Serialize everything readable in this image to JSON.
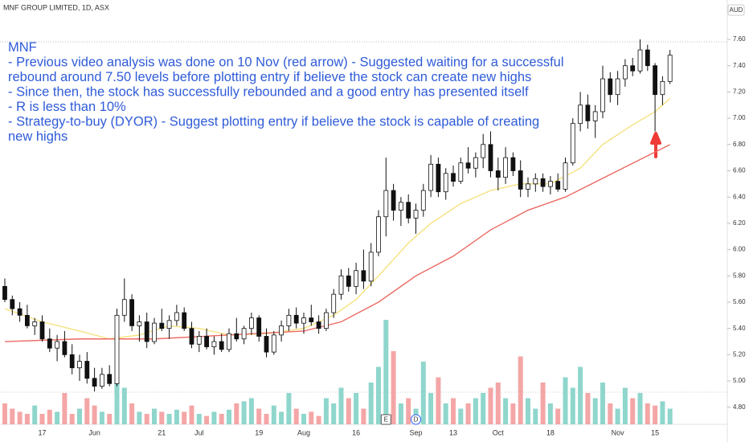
{
  "chart_data": {
    "type": "candlestick",
    "title": "MNF GROUP LIMITED, 1D, ASX",
    "currency": "AUD",
    "annotation": [
      "MNF",
      "- Previous video analysis was done on 10 Nov (red arrow) - Suggested waiting for a successful",
      "rebound around 7.50 levels before plotting entry if believe the stock can create new highs",
      "- Since then, the stock has successfully rebounded and a good entry has presented itself",
      "- R is less than 10%",
      "- Strategy-to-buy (DYOR) - Suggest plotting entry if believe the stock is capable of creating",
      "new highs"
    ],
    "categories": [
      null,
      null,
      null,
      null,
      null,
      "17",
      null,
      null,
      null,
      null,
      null,
      null,
      "Jun",
      null,
      null,
      null,
      null,
      null,
      null,
      null,
      null,
      "21",
      null,
      null,
      null,
      null,
      "Jul",
      null,
      null,
      null,
      null,
      null,
      null,
      null,
      "19",
      null,
      null,
      null,
      null,
      null,
      "Aug",
      null,
      null,
      null,
      null,
      null,
      null,
      "16",
      null,
      null,
      null,
      null,
      null,
      null,
      null,
      "Sep",
      null,
      null,
      null,
      null,
      "13",
      null,
      null,
      null,
      null,
      null,
      "Oct",
      null,
      null,
      null,
      null,
      null,
      null,
      "18",
      null,
      null,
      null,
      null,
      null,
      null,
      null,
      null,
      "Nov",
      null,
      null,
      null,
      null,
      "15",
      null,
      null
    ],
    "ohlc": [
      [
        5.72,
        5.78,
        5.6,
        5.62
      ],
      [
        5.62,
        5.65,
        5.5,
        5.55
      ],
      [
        5.55,
        5.6,
        5.45,
        5.5
      ],
      [
        5.5,
        5.58,
        5.4,
        5.42
      ],
      [
        5.42,
        5.48,
        5.35,
        5.45
      ],
      [
        5.45,
        5.5,
        5.3,
        5.32
      ],
      [
        5.32,
        5.4,
        5.22,
        5.25
      ],
      [
        5.25,
        5.35,
        5.15,
        5.3
      ],
      [
        5.3,
        5.38,
        5.18,
        5.2
      ],
      [
        5.2,
        5.28,
        5.05,
        5.1
      ],
      [
        5.1,
        5.2,
        5.0,
        5.15
      ],
      [
        5.15,
        5.22,
        4.98,
        5.02
      ],
      [
        5.02,
        5.1,
        4.92,
        4.96
      ],
      [
        4.96,
        5.1,
        4.94,
        5.05
      ],
      [
        5.05,
        5.12,
        4.96,
        4.98
      ],
      [
        4.98,
        5.55,
        4.96,
        5.5
      ],
      [
        5.5,
        5.78,
        5.45,
        5.62
      ],
      [
        5.62,
        5.66,
        5.38,
        5.42
      ],
      [
        5.42,
        5.5,
        5.3,
        5.45
      ],
      [
        5.45,
        5.52,
        5.25,
        5.3
      ],
      [
        5.3,
        5.48,
        5.28,
        5.44
      ],
      [
        5.44,
        5.55,
        5.38,
        5.4
      ],
      [
        5.4,
        5.5,
        5.32,
        5.46
      ],
      [
        5.46,
        5.58,
        5.42,
        5.52
      ],
      [
        5.52,
        5.56,
        5.38,
        5.4
      ],
      [
        5.4,
        5.45,
        5.25,
        5.28
      ],
      [
        5.28,
        5.38,
        5.22,
        5.34
      ],
      [
        5.34,
        5.4,
        5.24,
        5.26
      ],
      [
        5.26,
        5.34,
        5.2,
        5.3
      ],
      [
        5.3,
        5.36,
        5.22,
        5.24
      ],
      [
        5.24,
        5.4,
        5.22,
        5.36
      ],
      [
        5.36,
        5.48,
        5.3,
        5.32
      ],
      [
        5.32,
        5.42,
        5.28,
        5.4
      ],
      [
        5.4,
        5.52,
        5.35,
        5.48
      ],
      [
        5.48,
        5.5,
        5.3,
        5.34
      ],
      [
        5.34,
        5.4,
        5.18,
        5.22
      ],
      [
        5.22,
        5.38,
        5.2,
        5.35
      ],
      [
        5.35,
        5.46,
        5.3,
        5.42
      ],
      [
        5.42,
        5.55,
        5.38,
        5.5
      ],
      [
        5.5,
        5.56,
        5.4,
        5.44
      ],
      [
        5.44,
        5.52,
        5.36,
        5.48
      ],
      [
        5.48,
        5.58,
        5.42,
        5.45
      ],
      [
        5.45,
        5.5,
        5.36,
        5.4
      ],
      [
        5.4,
        5.55,
        5.38,
        5.52
      ],
      [
        5.52,
        5.7,
        5.48,
        5.66
      ],
      [
        5.66,
        5.85,
        5.62,
        5.8
      ],
      [
        5.8,
        5.86,
        5.68,
        5.72
      ],
      [
        5.72,
        5.9,
        5.66,
        5.84
      ],
      [
        5.84,
        6.0,
        5.7,
        5.76
      ],
      [
        5.76,
        6.05,
        5.72,
        5.98
      ],
      [
        5.98,
        6.3,
        5.95,
        6.25
      ],
      [
        6.25,
        6.7,
        6.1,
        6.45
      ],
      [
        6.45,
        6.5,
        6.22,
        6.3
      ],
      [
        6.3,
        6.4,
        6.18,
        6.36
      ],
      [
        6.36,
        6.42,
        6.2,
        6.24
      ],
      [
        6.24,
        6.35,
        6.12,
        6.3
      ],
      [
        6.3,
        6.5,
        6.25,
        6.45
      ],
      [
        6.45,
        6.72,
        6.4,
        6.65
      ],
      [
        6.65,
        6.7,
        6.4,
        6.44
      ],
      [
        6.44,
        6.62,
        6.38,
        6.58
      ],
      [
        6.58,
        6.64,
        6.48,
        6.52
      ],
      [
        6.52,
        6.7,
        6.5,
        6.66
      ],
      [
        6.66,
        6.78,
        6.58,
        6.62
      ],
      [
        6.62,
        6.74,
        6.55,
        6.7
      ],
      [
        6.7,
        6.88,
        6.62,
        6.8
      ],
      [
        6.8,
        6.9,
        6.55,
        6.6
      ],
      [
        6.6,
        6.7,
        6.45,
        6.55
      ],
      [
        6.55,
        6.78,
        6.5,
        6.7
      ],
      [
        6.7,
        6.74,
        6.56,
        6.6
      ],
      [
        6.6,
        6.68,
        6.4,
        6.46
      ],
      [
        6.46,
        6.55,
        6.4,
        6.5
      ],
      [
        6.5,
        6.58,
        6.44,
        6.54
      ],
      [
        6.54,
        6.58,
        6.44,
        6.48
      ],
      [
        6.48,
        6.56,
        6.42,
        6.52
      ],
      [
        6.52,
        6.58,
        6.44,
        6.46
      ],
      [
        6.46,
        6.7,
        6.44,
        6.66
      ],
      [
        6.66,
        7.0,
        6.64,
        6.96
      ],
      [
        6.96,
        7.2,
        6.9,
        7.1
      ],
      [
        7.1,
        7.18,
        6.92,
        6.98
      ],
      [
        6.98,
        7.1,
        6.85,
        7.05
      ],
      [
        7.05,
        7.4,
        7.0,
        7.3
      ],
      [
        7.3,
        7.35,
        7.12,
        7.18
      ],
      [
        7.18,
        7.36,
        7.1,
        7.3
      ],
      [
        7.3,
        7.45,
        7.24,
        7.4
      ],
      [
        7.4,
        7.46,
        7.32,
        7.36
      ],
      [
        7.36,
        7.6,
        7.34,
        7.52
      ],
      [
        7.52,
        7.56,
        7.36,
        7.4
      ],
      [
        7.4,
        7.42,
        6.9,
        7.18
      ],
      [
        7.18,
        7.32,
        7.1,
        7.28
      ],
      [
        7.28,
        7.52,
        7.26,
        7.48
      ]
    ],
    "volume": [
      20,
      15,
      12,
      10,
      18,
      10,
      14,
      12,
      30,
      10,
      15,
      25,
      18,
      12,
      10,
      40,
      35,
      20,
      12,
      10,
      15,
      12,
      10,
      14,
      12,
      18,
      10,
      8,
      12,
      10,
      14,
      20,
      22,
      25,
      15,
      10,
      18,
      12,
      30,
      15,
      10,
      12,
      8,
      25,
      20,
      35,
      25,
      30,
      15,
      40,
      55,
      100,
      70,
      20,
      25,
      15,
      60,
      30,
      45,
      20,
      25,
      15,
      20,
      25,
      30,
      35,
      40,
      25,
      20,
      65,
      25,
      15,
      40,
      20,
      15,
      45,
      35,
      55,
      30,
      25,
      40,
      20,
      15,
      35,
      25,
      30,
      20,
      18,
      22,
      15
    ],
    "up_color": "#8fd6cc",
    "down_color": "#f4a6a6",
    "moving_averages": [
      {
        "color": "#f6e27f",
        "x": [
          0,
          5,
          10,
          14,
          18,
          22,
          26,
          30,
          35,
          40,
          44,
          47,
          50,
          54,
          57,
          61,
          65,
          69,
          73,
          77,
          80,
          84,
          87,
          89
        ],
        "values": [
          5.55,
          5.45,
          5.38,
          5.32,
          5.35,
          5.42,
          5.4,
          5.35,
          5.36,
          5.4,
          5.5,
          5.62,
          5.8,
          6.05,
          6.2,
          6.35,
          6.45,
          6.5,
          6.5,
          6.62,
          6.8,
          6.95,
          7.05,
          7.15
        ]
      },
      {
        "color": "#ec6a63",
        "x": [
          0,
          10,
          20,
          30,
          40,
          45,
          50,
          55,
          60,
          65,
          70,
          75,
          82,
          89
        ],
        "values": [
          5.3,
          5.32,
          5.32,
          5.35,
          5.38,
          5.45,
          5.6,
          5.8,
          5.95,
          6.15,
          6.3,
          6.4,
          6.6,
          6.8
        ]
      }
    ],
    "events": [
      {
        "label": "E",
        "x": 51
      },
      {
        "label": "D",
        "x": 55
      }
    ],
    "ylim": [
      4.67,
      7.9
    ],
    "yticks": [
      {
        "value": 4.8,
        "label": "4.80"
      },
      {
        "value": 5.0,
        "label": "5.00"
      },
      {
        "value": 5.2,
        "label": "5.20"
      },
      {
        "value": 5.4,
        "label": "5.40"
      },
      {
        "value": 5.6,
        "label": "5.60"
      },
      {
        "value": 5.8,
        "label": "5.80"
      },
      {
        "value": 6.0,
        "label": "6.00"
      },
      {
        "value": 6.2,
        "label": "6.20"
      },
      {
        "value": 6.4,
        "label": "6.40"
      },
      {
        "value": 6.6,
        "label": "6.60"
      },
      {
        "value": 6.8,
        "label": "6.80"
      },
      {
        "value": 7.0,
        "label": "7.00"
      },
      {
        "value": 7.2,
        "label": "7.20"
      },
      {
        "value": 7.4,
        "label": "7.40"
      },
      {
        "value": 7.6,
        "label": "7.60"
      }
    ]
  }
}
